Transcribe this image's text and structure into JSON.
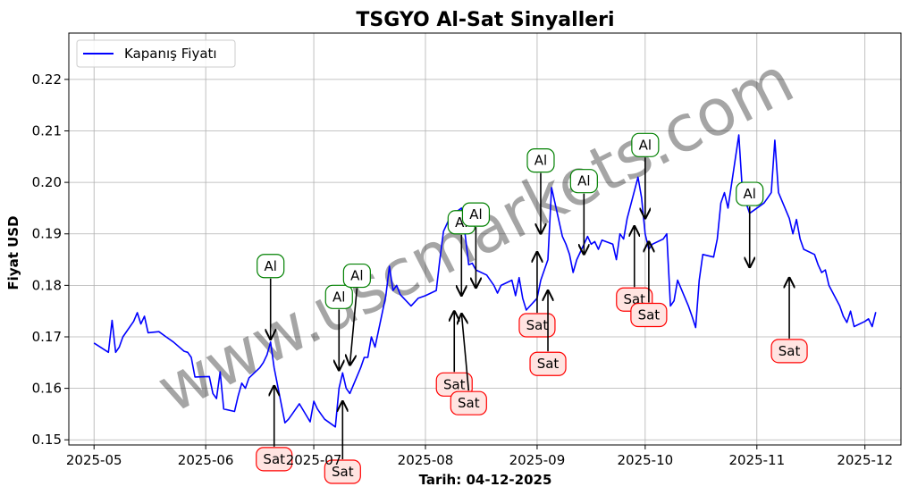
{
  "chart_data": {
    "type": "line",
    "title": "TSGYO Al-Sat Sinyalleri",
    "xlabel": "Tarih: 04-12-2025",
    "ylabel": "Fiyat USD",
    "xlim": [
      "2025-04-24",
      "2025-12-11"
    ],
    "ylim": [
      0.149,
      0.229
    ],
    "grid": true,
    "legend_position": "top-left",
    "x_ticks": [
      "2025-05",
      "2025-06",
      "2025-07",
      "2025-08",
      "2025-09",
      "2025-10",
      "2025-11",
      "2025-12"
    ],
    "y_ticks": [
      0.15,
      0.16,
      0.17,
      0.18,
      0.19,
      0.2,
      0.21,
      0.22
    ],
    "y_tick_labels": [
      "0.15",
      "0.16",
      "0.17",
      "0.18",
      "0.19",
      "0.20",
      "0.21",
      "0.22"
    ],
    "series": [
      {
        "name": "Kapanış Fiyatı",
        "color": "#0000ff",
        "points": [
          [
            "2025-05-01",
            0.1688
          ],
          [
            "2025-05-05",
            0.167
          ],
          [
            "2025-05-06",
            0.1732
          ],
          [
            "2025-05-07",
            0.167
          ],
          [
            "2025-05-08",
            0.168
          ],
          [
            "2025-05-09",
            0.17
          ],
          [
            "2025-05-12",
            0.173
          ],
          [
            "2025-05-13",
            0.1747
          ],
          [
            "2025-05-14",
            0.1725
          ],
          [
            "2025-05-15",
            0.174
          ],
          [
            "2025-05-16",
            0.1708
          ],
          [
            "2025-05-19",
            0.171
          ],
          [
            "2025-05-21",
            0.17
          ],
          [
            "2025-05-23",
            0.169
          ],
          [
            "2025-05-26",
            0.1672
          ],
          [
            "2025-05-27",
            0.167
          ],
          [
            "2025-05-28",
            0.166
          ],
          [
            "2025-05-29",
            0.1622
          ],
          [
            "2025-06-02",
            0.1623
          ],
          [
            "2025-06-03",
            0.159
          ],
          [
            "2025-06-04",
            0.158
          ],
          [
            "2025-06-05",
            0.1632
          ],
          [
            "2025-06-06",
            0.156
          ],
          [
            "2025-06-09",
            0.1555
          ],
          [
            "2025-06-10",
            0.1585
          ],
          [
            "2025-06-11",
            0.161
          ],
          [
            "2025-06-12",
            0.16
          ],
          [
            "2025-06-13",
            0.162
          ],
          [
            "2025-06-16",
            0.164
          ],
          [
            "2025-06-17",
            0.165
          ],
          [
            "2025-06-18",
            0.1665
          ],
          [
            "2025-06-19",
            0.169
          ],
          [
            "2025-06-20",
            0.164
          ],
          [
            "2025-06-23",
            0.1533
          ],
          [
            "2025-06-24",
            0.154
          ],
          [
            "2025-06-25",
            0.155
          ],
          [
            "2025-06-26",
            0.156
          ],
          [
            "2025-06-27",
            0.157
          ],
          [
            "2025-06-30",
            0.1535
          ],
          [
            "2025-07-01",
            0.1575
          ],
          [
            "2025-07-02",
            0.156
          ],
          [
            "2025-07-03",
            0.155
          ],
          [
            "2025-07-04",
            0.154
          ],
          [
            "2025-07-07",
            0.1525
          ],
          [
            "2025-07-08",
            0.16
          ],
          [
            "2025-07-09",
            0.163
          ],
          [
            "2025-07-10",
            0.16
          ],
          [
            "2025-07-11",
            0.159
          ],
          [
            "2025-07-14",
            0.164
          ],
          [
            "2025-07-15",
            0.166
          ],
          [
            "2025-07-16",
            0.166
          ],
          [
            "2025-07-17",
            0.17
          ],
          [
            "2025-07-18",
            0.168
          ],
          [
            "2025-07-21",
            0.178
          ],
          [
            "2025-07-22",
            0.1837
          ],
          [
            "2025-07-23",
            0.179
          ],
          [
            "2025-07-24",
            0.18
          ],
          [
            "2025-07-25",
            0.1782
          ],
          [
            "2025-07-28",
            0.176
          ],
          [
            "2025-07-30",
            0.1775
          ],
          [
            "2025-08-01",
            0.178
          ],
          [
            "2025-08-04",
            0.179
          ],
          [
            "2025-08-05",
            0.185
          ],
          [
            "2025-08-06",
            0.1905
          ],
          [
            "2025-08-07",
            0.192
          ],
          [
            "2025-08-08",
            0.1935
          ],
          [
            "2025-08-11",
            0.195
          ],
          [
            "2025-08-12",
            0.19
          ],
          [
            "2025-08-13",
            0.184
          ],
          [
            "2025-08-14",
            0.1843
          ],
          [
            "2025-08-15",
            0.183
          ],
          [
            "2025-08-18",
            0.182
          ],
          [
            "2025-08-19",
            0.181
          ],
          [
            "2025-08-20",
            0.18
          ],
          [
            "2025-08-21",
            0.1785
          ],
          [
            "2025-08-22",
            0.18
          ],
          [
            "2025-08-25",
            0.181
          ],
          [
            "2025-08-26",
            0.178
          ],
          [
            "2025-08-27",
            0.1815
          ],
          [
            "2025-08-28",
            0.1775
          ],
          [
            "2025-08-29",
            0.1752
          ],
          [
            "2025-09-01",
            0.1775
          ],
          [
            "2025-09-02",
            0.181
          ],
          [
            "2025-09-03",
            0.183
          ],
          [
            "2025-09-04",
            0.185
          ],
          [
            "2025-09-05",
            0.199
          ],
          [
            "2025-09-08",
            0.1895
          ],
          [
            "2025-09-09",
            0.188
          ],
          [
            "2025-09-10",
            0.186
          ],
          [
            "2025-09-11",
            0.1825
          ],
          [
            "2025-09-12",
            0.185
          ],
          [
            "2025-09-15",
            0.1895
          ],
          [
            "2025-09-16",
            0.188
          ],
          [
            "2025-09-17",
            0.1885
          ],
          [
            "2025-09-18",
            0.187
          ],
          [
            "2025-09-19",
            0.1888
          ],
          [
            "2025-09-22",
            0.188
          ],
          [
            "2025-09-23",
            0.185
          ],
          [
            "2025-09-24",
            0.19
          ],
          [
            "2025-09-25",
            0.189
          ],
          [
            "2025-09-26",
            0.193
          ],
          [
            "2025-09-29",
            0.201
          ],
          [
            "2025-09-30",
            0.197
          ],
          [
            "2025-10-01",
            0.19
          ],
          [
            "2025-10-02",
            0.187
          ],
          [
            "2025-10-03",
            0.188
          ],
          [
            "2025-10-06",
            0.189
          ],
          [
            "2025-10-07",
            0.19
          ],
          [
            "2025-10-08",
            0.176
          ],
          [
            "2025-10-09",
            0.177
          ],
          [
            "2025-10-10",
            0.181
          ],
          [
            "2025-10-13",
            0.176
          ],
          [
            "2025-10-14",
            0.174
          ],
          [
            "2025-10-15",
            0.1718
          ],
          [
            "2025-10-16",
            0.181
          ],
          [
            "2025-10-17",
            0.186
          ],
          [
            "2025-10-20",
            0.1855
          ],
          [
            "2025-10-21",
            0.189
          ],
          [
            "2025-10-22",
            0.196
          ],
          [
            "2025-10-23",
            0.198
          ],
          [
            "2025-10-24",
            0.195
          ],
          [
            "2025-10-27",
            0.2092
          ],
          [
            "2025-10-28",
            0.198
          ],
          [
            "2025-10-29",
            0.196
          ],
          [
            "2025-10-30",
            0.194
          ],
          [
            "2025-10-31",
            0.1945
          ],
          [
            "2025-11-03",
            0.196
          ],
          [
            "2025-11-04",
            0.197
          ],
          [
            "2025-11-05",
            0.198
          ],
          [
            "2025-11-06",
            0.2082
          ],
          [
            "2025-11-07",
            0.198
          ],
          [
            "2025-11-10",
            0.193
          ],
          [
            "2025-11-11",
            0.19
          ],
          [
            "2025-11-12",
            0.1928
          ],
          [
            "2025-11-13",
            0.189
          ],
          [
            "2025-11-14",
            0.187
          ],
          [
            "2025-11-17",
            0.186
          ],
          [
            "2025-11-18",
            0.184
          ],
          [
            "2025-11-19",
            0.1825
          ],
          [
            "2025-11-20",
            0.183
          ],
          [
            "2025-11-21",
            0.18
          ],
          [
            "2025-11-24",
            0.176
          ],
          [
            "2025-11-25",
            0.174
          ],
          [
            "2025-11-26",
            0.1728
          ],
          [
            "2025-11-27",
            0.175
          ],
          [
            "2025-11-28",
            0.172
          ],
          [
            "2025-12-01",
            0.173
          ],
          [
            "2025-12-02",
            0.1735
          ],
          [
            "2025-12-03",
            0.172
          ],
          [
            "2025-12-04",
            0.1748
          ]
        ]
      }
    ],
    "annotations": [
      {
        "label": "Al",
        "type": "buy",
        "date": "2025-06-19",
        "value": 0.169
      },
      {
        "label": "Sat",
        "type": "sell",
        "date": "2025-06-20",
        "value": 0.161
      },
      {
        "label": "Al",
        "type": "buy",
        "date": "2025-07-08",
        "value": 0.163
      },
      {
        "label": "Sat",
        "type": "sell",
        "date": "2025-07-09",
        "value": 0.158
      },
      {
        "label": "Al",
        "type": "buy",
        "date": "2025-07-11",
        "value": 0.164
      },
      {
        "label": "Al",
        "type": "buy",
        "date": "2025-08-11",
        "value": 0.1775
      },
      {
        "label": "Sat",
        "type": "sell",
        "date": "2025-08-09",
        "value": 0.1755
      },
      {
        "label": "Sat",
        "type": "sell",
        "date": "2025-08-11",
        "value": 0.175
      },
      {
        "label": "Al",
        "type": "buy",
        "date": "2025-08-15",
        "value": 0.179
      },
      {
        "label": "Sat",
        "type": "sell",
        "date": "2025-09-01",
        "value": 0.187
      },
      {
        "label": "Al",
        "type": "buy",
        "date": "2025-09-02",
        "value": 0.1895
      },
      {
        "label": "Sat",
        "type": "sell",
        "date": "2025-09-04",
        "value": 0.1795
      },
      {
        "label": "Al",
        "type": "buy",
        "date": "2025-09-14",
        "value": 0.1855
      },
      {
        "label": "Sat",
        "type": "sell",
        "date": "2025-09-28",
        "value": 0.192
      },
      {
        "label": "Al",
        "type": "buy",
        "date": "2025-10-01",
        "value": 0.1925
      },
      {
        "label": "Sat",
        "type": "sell",
        "date": "2025-10-02",
        "value": 0.189
      },
      {
        "label": "Al",
        "type": "buy",
        "date": "2025-10-30",
        "value": 0.183
      },
      {
        "label": "Sat",
        "type": "sell",
        "date": "2025-11-10",
        "value": 0.182
      }
    ],
    "watermark": "www.uscmarkets.com"
  }
}
